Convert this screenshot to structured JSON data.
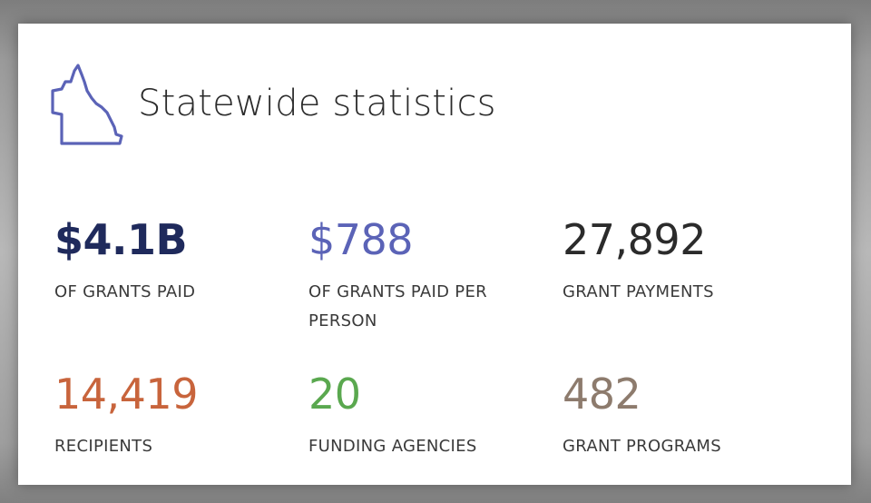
{
  "header": {
    "title": "Statewide statistics",
    "icon": "queensland-outline-icon",
    "icon_color": "#5b63b7"
  },
  "stats": [
    {
      "value": "$4.1B",
      "label": "OF GRANTS PAID",
      "color": "#1f2a5c"
    },
    {
      "value": "$788",
      "label": "OF GRANTS PAID PER PERSON",
      "color": "#5b63b7"
    },
    {
      "value": "27,892",
      "label": "GRANT PAYMENTS",
      "color": "#2b2b2b"
    },
    {
      "value": "14,419",
      "label": "RECIPIENTS",
      "color": "#c8643c"
    },
    {
      "value": "20",
      "label": "FUNDING AGENCIES",
      "color": "#5aa84f"
    },
    {
      "value": "482",
      "label": "GRANT PROGRAMS",
      "color": "#8d7b6d"
    }
  ]
}
